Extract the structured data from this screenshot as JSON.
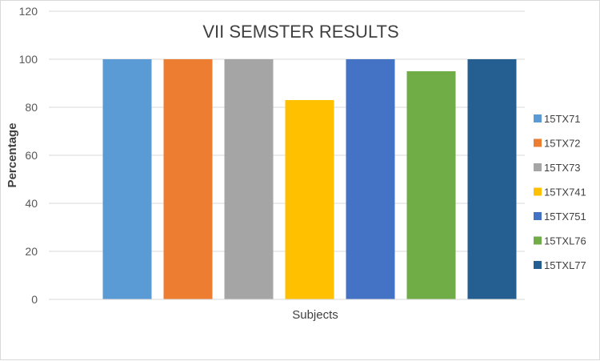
{
  "chart_data": {
    "type": "bar",
    "title": "VII SEMSTER RESULTS",
    "xlabel": "Subjects",
    "ylabel": "Percentage",
    "ylim": [
      0,
      120
    ],
    "yticks": [
      0,
      20,
      40,
      60,
      80,
      100,
      120
    ],
    "grid": true,
    "legend_position": "right",
    "series": [
      {
        "name": "15TX71",
        "value": 100,
        "color": "#5B9BD5"
      },
      {
        "name": "15TX72",
        "value": 100,
        "color": "#ED7D31"
      },
      {
        "name": "15TX73",
        "value": 100,
        "color": "#A5A5A5"
      },
      {
        "name": "15TX741",
        "value": 83,
        "color": "#FFC000"
      },
      {
        "name": "15TX751",
        "value": 100,
        "color": "#4472C4"
      },
      {
        "name": "15TXL76",
        "value": 95,
        "color": "#70AD47"
      },
      {
        "name": "15TXL77",
        "value": 100,
        "color": "#255E91"
      }
    ]
  }
}
